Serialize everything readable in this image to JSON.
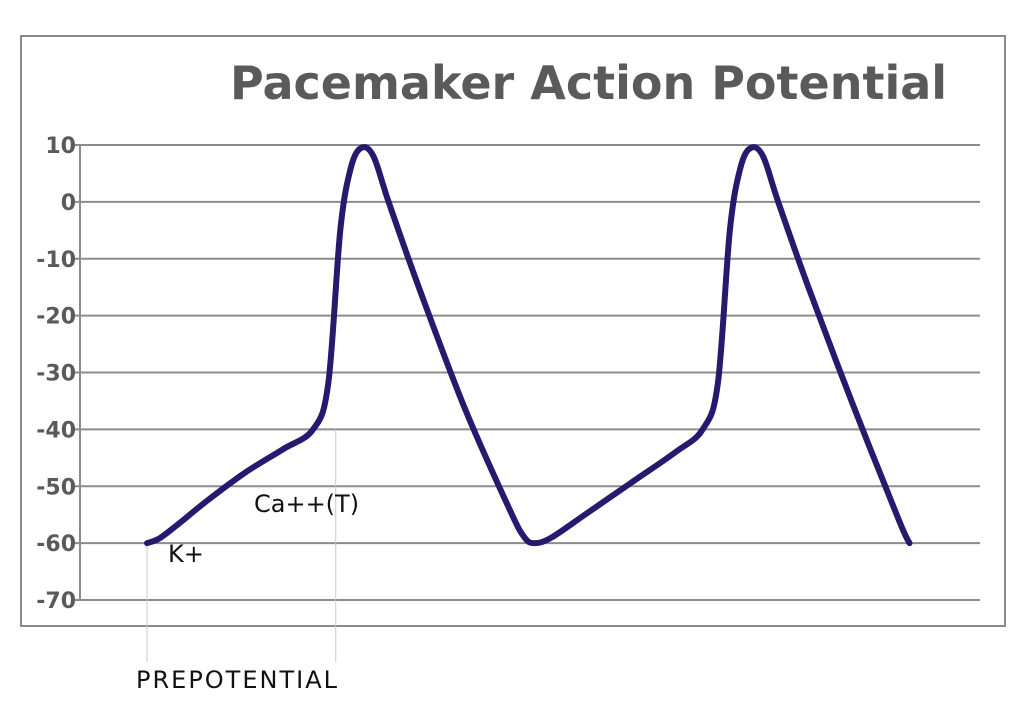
{
  "chart_data": {
    "type": "line",
    "title": "Pacemaker Action Potential",
    "ylim": [
      -70,
      10
    ],
    "yticks": [
      10,
      0,
      -10,
      -20,
      -30,
      -40,
      -50,
      -60,
      -70
    ],
    "grid": true,
    "line_color": "#261a6e",
    "grid_color": "#8c8c8c",
    "series": [
      {
        "values": [
          [
            0,
            -60
          ],
          [
            8,
            -59.2
          ],
          [
            20,
            -56.8
          ],
          [
            40,
            -52.5
          ],
          [
            65,
            -47.6
          ],
          [
            90,
            -43.5
          ],
          [
            110,
            -40
          ],
          [
            120,
            -32
          ],
          [
            128,
            -5
          ],
          [
            135,
            6
          ],
          [
            142,
            9.5
          ],
          [
            150,
            8
          ],
          [
            160,
            0
          ],
          [
            180,
            -15
          ],
          [
            210,
            -36
          ],
          [
            240,
            -54
          ],
          [
            250,
            -59
          ],
          [
            257,
            -60
          ],
          [
            268,
            -59
          ],
          [
            290,
            -55
          ],
          [
            320,
            -49.5
          ],
          [
            350,
            -44
          ],
          [
            368,
            -40
          ],
          [
            378,
            -32
          ],
          [
            386,
            -5
          ],
          [
            393,
            6
          ],
          [
            400,
            9.5
          ],
          [
            408,
            8
          ],
          [
            418,
            0
          ],
          [
            438,
            -15
          ],
          [
            468,
            -36
          ],
          [
            498,
            -56
          ],
          [
            505,
            -60
          ]
        ]
      }
    ],
    "annotations": [
      {
        "text": "Ca++(T)"
      },
      {
        "text": "K+"
      }
    ],
    "footer_label": "PREPOTENTIAL"
  }
}
